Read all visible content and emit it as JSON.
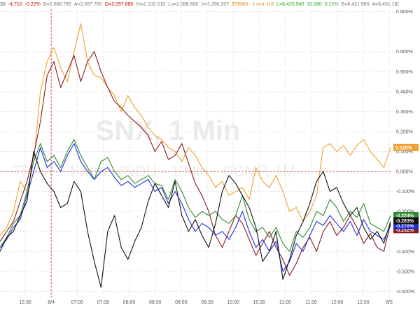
{
  "header": {
    "items": [
      {
        "text": "30",
        "color": "#555555"
      },
      {
        "text": "-4.710",
        "color": "#cc0000"
      },
      {
        "text": "-0.22%",
        "color": "#cc0000"
      },
      {
        "text": "B=2,088.780",
        "color": "#777777"
      },
      {
        "text": "A=2,097.760",
        "color": "#777777"
      },
      {
        "text": "O=2,097.680",
        "color": "#cc0000"
      },
      {
        "text": "Hi=2,102.510",
        "color": "#777777"
      },
      {
        "text": "Lo=2,088.600",
        "color": "#777777"
      },
      {
        "text": "V=2,200,207",
        "color": "#777777"
      },
      {
        "text": "$TRAN - 1 min",
        "color": "#e08a00"
      },
      {
        "text": "US",
        "color": "#e08a00"
      },
      {
        "text": "L=8,420.940",
        "color": "#22aa22"
      },
      {
        "text": "10.080",
        "color": "#22aa22"
      },
      {
        "text": "0.12%",
        "color": "#22aa22"
      },
      {
        "text": "B=8,421.960",
        "color": "#777777"
      },
      {
        "text": "A=8,451.18(",
        "color": "#777777"
      }
    ]
  },
  "watermark": {
    "primary": "SNX, 1 Min",
    "secondary": "TRAN - 1 Min - INDU - 1 Min - CCMP, 1M"
  },
  "colors": {
    "orange": "#f0a030",
    "darkred": "#8b1a1a",
    "green": "#2e8b2e",
    "blue": "#1a2ee0",
    "black": "#111111",
    "zero_line": "#e05050"
  },
  "chart_data": {
    "type": "line",
    "xlabel": "",
    "ylabel": "",
    "x_ticks": [
      "12:30",
      "8/4",
      "07:00",
      "07:30",
      "08:00",
      "08:30",
      "09:00",
      "09:30",
      "10:00",
      "10:30",
      "11:00",
      "11:30",
      "12:00",
      "12:30",
      "8/5"
    ],
    "y_ticks": [
      "0.800%",
      "0.600%",
      "0.500%",
      "0.400%",
      "0.300%",
      "0.200%",
      "0.100%",
      "0.000%",
      "-0.100%",
      "-0.200%",
      "-0.300%",
      "-0.400%",
      "-0.500%",
      "-0.600%"
    ],
    "ylim": [
      -0.63,
      0.83
    ],
    "session_break_tick": "8/4",
    "grid": true,
    "series": [
      {
        "color": "#f0a030",
        "values": [
          -0.32,
          -0.28,
          -0.2,
          -0.05,
          -0.1,
          0.05,
          0.4,
          0.55,
          0.62,
          0.52,
          0.45,
          0.6,
          0.74,
          0.55,
          0.48,
          0.47,
          0.42,
          0.38,
          0.3,
          0.38,
          0.32,
          0.28,
          0.22,
          0.18,
          0.16,
          0.12,
          0.1,
          0.05,
          0.12,
          0.08,
          0.02,
          -0.02,
          -0.08,
          -0.05,
          -0.12,
          -0.1,
          -0.08,
          -0.14,
          0.02,
          -0.05,
          -0.08,
          -0.02,
          -0.1,
          -0.2,
          -0.18,
          -0.25,
          -0.2,
          -0.12,
          0.12,
          0.14,
          0.1,
          0.13,
          0.08,
          0.13,
          0.16,
          0.1,
          0.06,
          0.02,
          0.12
        ],
        "end_label": "0.120%",
        "end_label_bg": "#f0a030",
        "end_label_color": "#ffffff"
      },
      {
        "color": "#8b1a1a",
        "values": [
          -0.35,
          -0.3,
          -0.25,
          -0.15,
          -0.05,
          0.08,
          0.25,
          0.48,
          0.55,
          0.42,
          0.5,
          0.58,
          0.45,
          0.55,
          0.6,
          0.5,
          0.42,
          0.35,
          0.32,
          0.28,
          0.25,
          0.22,
          0.18,
          0.1,
          0.15,
          0.06,
          0.08,
          0.14,
          0.04,
          -0.06,
          -0.12,
          -0.2,
          -0.32,
          -0.38,
          -0.3,
          -0.22,
          -0.26,
          -0.34,
          -0.42,
          -0.36,
          -0.3,
          -0.38,
          -0.44,
          -0.52,
          -0.46,
          -0.38,
          -0.33,
          -0.4,
          -0.3,
          -0.25,
          -0.32,
          -0.28,
          -0.22,
          -0.28,
          -0.36,
          -0.31,
          -0.38,
          -0.4,
          -0.26
        ],
        "end_label": "-0.252%",
        "end_label_bg": "#8b1a1a",
        "end_label_color": "#ffffff"
      },
      {
        "color": "#2e8b2e",
        "values": [
          -0.38,
          -0.33,
          -0.26,
          -0.22,
          -0.1,
          0.05,
          0.14,
          0.05,
          0.08,
          0.02,
          0.1,
          0.16,
          0.08,
          0.02,
          -0.04,
          0.05,
          0.07,
          0.0,
          -0.04,
          -0.02,
          -0.06,
          -0.04,
          -0.02,
          -0.06,
          -0.07,
          -0.14,
          -0.04,
          -0.1,
          -0.18,
          -0.23,
          -0.2,
          -0.22,
          -0.2,
          -0.24,
          -0.26,
          -0.22,
          -0.12,
          -0.24,
          -0.3,
          -0.28,
          -0.33,
          -0.28,
          -0.36,
          -0.4,
          -0.3,
          -0.33,
          -0.28,
          -0.2,
          -0.22,
          -0.14,
          -0.18,
          -0.25,
          -0.2,
          -0.23,
          -0.16,
          -0.26,
          -0.28,
          -0.3,
          -0.22
        ],
        "end_label": "-0.224%",
        "end_label_bg": "#2e8b2e",
        "end_label_color": "#ffffff"
      },
      {
        "color": "#1a2ee0",
        "values": [
          -0.38,
          -0.34,
          -0.28,
          -0.24,
          -0.12,
          0.0,
          0.12,
          0.02,
          0.05,
          0.0,
          0.08,
          0.14,
          0.05,
          0.0,
          -0.04,
          0.0,
          0.02,
          -0.03,
          -0.07,
          -0.05,
          -0.08,
          -0.06,
          -0.04,
          -0.1,
          -0.08,
          -0.16,
          -0.1,
          -0.16,
          -0.24,
          -0.3,
          -0.26,
          -0.28,
          -0.32,
          -0.3,
          -0.34,
          -0.28,
          -0.2,
          -0.3,
          -0.38,
          -0.34,
          -0.4,
          -0.35,
          -0.5,
          -0.45,
          -0.36,
          -0.4,
          -0.32,
          -0.25,
          -0.27,
          -0.22,
          -0.26,
          -0.3,
          -0.25,
          -0.32,
          -0.24,
          -0.3,
          -0.32,
          -0.34,
          -0.27
        ],
        "end_label": "-0.270%",
        "end_label_bg": "#1a2ee0",
        "end_label_color": "#ffffff"
      },
      {
        "color": "#111111",
        "values": [
          -0.4,
          -0.33,
          -0.3,
          -0.22,
          -0.15,
          0.1,
          0.0,
          -0.06,
          -0.1,
          -0.18,
          -0.16,
          -0.05,
          -0.1,
          -0.3,
          -0.45,
          -0.58,
          -0.3,
          -0.22,
          -0.38,
          -0.44,
          -0.35,
          -0.28,
          -0.15,
          -0.06,
          -0.12,
          -0.18,
          -0.05,
          -0.22,
          -0.3,
          -0.24,
          -0.32,
          -0.38,
          -0.26,
          -0.1,
          -0.02,
          -0.06,
          -0.12,
          -0.18,
          -0.28,
          -0.45,
          -0.4,
          -0.3,
          -0.54,
          -0.44,
          -0.32,
          -0.25,
          -0.16,
          -0.05,
          0.0,
          -0.1,
          -0.08,
          -0.16,
          -0.22,
          -0.18,
          -0.28,
          -0.34,
          -0.3,
          -0.36,
          -0.25
        ],
        "end_label": "-0.263%",
        "end_label_bg": "#111111",
        "end_label_color": "#ffffff"
      }
    ]
  }
}
